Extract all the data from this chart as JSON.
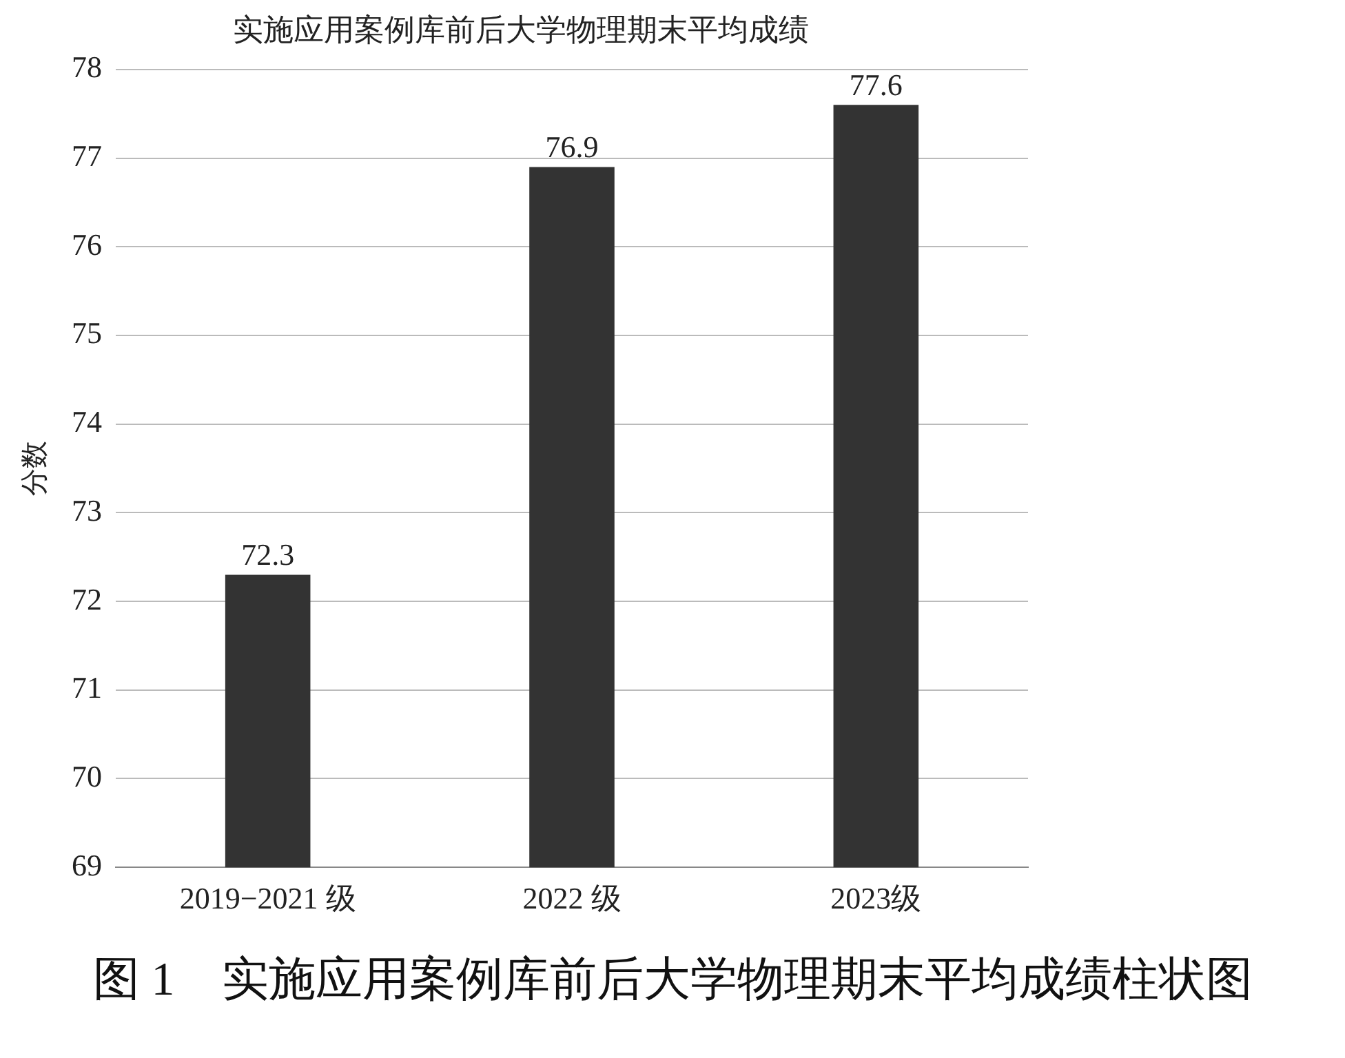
{
  "chart_data": {
    "type": "bar",
    "title": "实施应用案例库前后大学物理期末平均成绩",
    "ylabel": "分数",
    "categories": [
      "2019−2021 级",
      "2022 级",
      "2023级"
    ],
    "values": [
      72.3,
      76.9,
      77.6
    ],
    "color": "#333333",
    "ylim": [
      69,
      78
    ],
    "yticks": [
      69,
      70,
      71,
      72,
      73,
      74,
      75,
      76,
      77,
      78
    ],
    "grid": "y",
    "legend": false,
    "data_labels": true,
    "annotations": [
      "图 1　实施应用案例库前后大学物理期末平均成绩柱状图"
    ]
  }
}
